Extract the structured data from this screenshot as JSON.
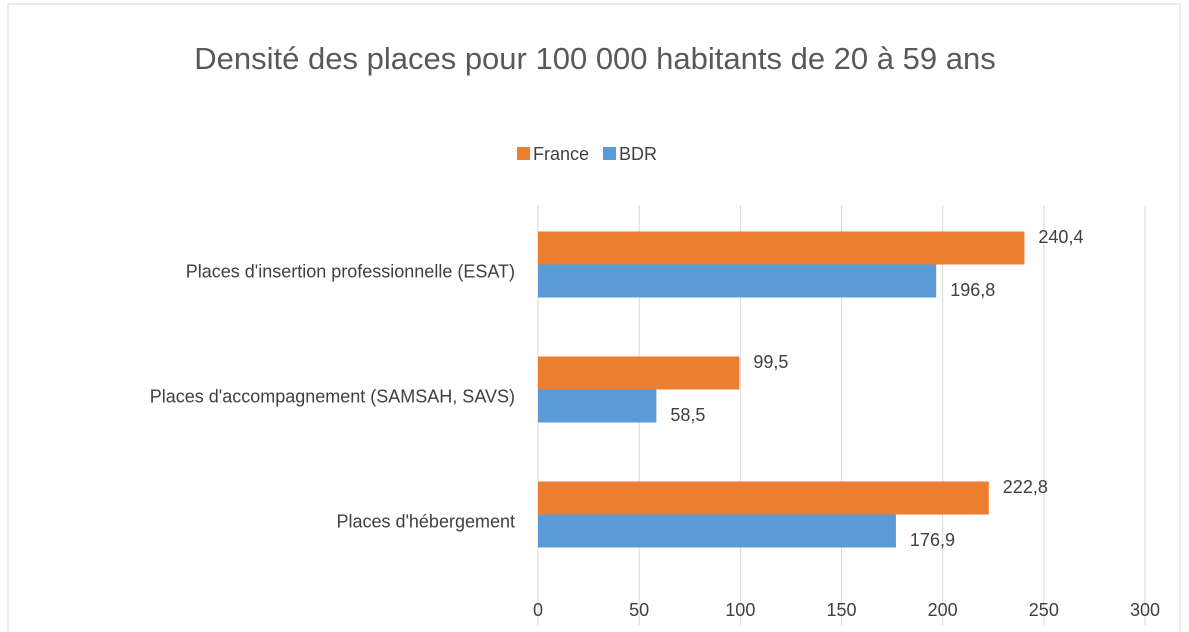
{
  "chart_data": {
    "type": "hbar",
    "title": "Densité des places pour 100 000 habitants de 20 à 59 ans",
    "categories": [
      "Places d'insertion professionnelle (ESAT)",
      "Places d'accompagnement (SAMSAH, SAVS)",
      "Places d'hébergement"
    ],
    "series": [
      {
        "name": "France",
        "color": "#ed7d31",
        "values": [
          240.4,
          99.5,
          222.8
        ],
        "value_labels": [
          "240,4",
          "99,5",
          "222,8"
        ]
      },
      {
        "name": "BDR",
        "color": "#5b9bd5",
        "values": [
          196.8,
          58.5,
          176.9
        ],
        "value_labels": [
          "196,8",
          "58,5",
          "176,9"
        ]
      }
    ],
    "xlim": [
      0,
      300
    ],
    "xticks": [
      0,
      50,
      100,
      150,
      200,
      250,
      300
    ],
    "grid": true,
    "legend": "top"
  }
}
